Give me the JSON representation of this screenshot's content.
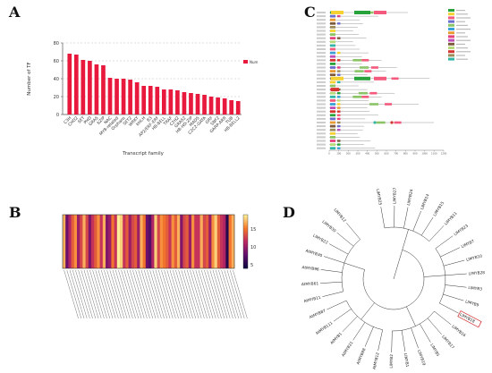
{
  "panels": {
    "a": "A",
    "b": "B",
    "c": "C",
    "d": "D"
  },
  "chart_data": [
    {
      "panel": "A",
      "type": "bar",
      "xlabel": "Transcript family",
      "ylabel": "Number of TF",
      "ylim": [
        0,
        80
      ],
      "yticks": [
        0,
        20,
        40,
        60,
        80
      ],
      "grid": true,
      "legend": {
        "label": "Num",
        "placement": "top-right"
      },
      "color": "#e8193c",
      "categories": [
        "C3H",
        "CHD2",
        "SET",
        "PHD",
        "GRAS",
        "bZIP",
        "NAC",
        "MYB-related",
        "Orphans",
        "SET2",
        "WRKY",
        "bHLH",
        "B3",
        "AP2/ERF-ERF",
        "HB-BELL",
        "TRAF",
        "C2H2",
        "GRAS2",
        "HB-HD-ZIP",
        "MADS",
        "C2C2-GATA",
        "GRF",
        "SNF2",
        "GARP-ARR",
        "TUB",
        "HB-BELL2"
      ],
      "values": [
        68,
        67,
        61,
        60,
        56,
        55,
        41,
        40,
        40,
        39,
        36,
        32,
        32,
        31,
        28,
        28,
        27,
        25,
        24,
        23,
        22,
        20,
        19,
        18,
        16,
        15
      ]
    },
    {
      "panel": "B",
      "type": "heatmap",
      "colorbar": {
        "ticks": [
          15,
          10,
          5
        ]
      },
      "columns": 60,
      "values": [
        17,
        8,
        11,
        14,
        16,
        10,
        13,
        17,
        13,
        9,
        12,
        14,
        16,
        12,
        17,
        9,
        10,
        15,
        12,
        19,
        18,
        12,
        14,
        10,
        13,
        14,
        10,
        17,
        15,
        8,
        7,
        11,
        18,
        13,
        16,
        15,
        14,
        12,
        16,
        14,
        17,
        9,
        13,
        14,
        10,
        16,
        12,
        12,
        17,
        13,
        14,
        10,
        16,
        18,
        14,
        12,
        11,
        5,
        15,
        17
      ]
    },
    {
      "panel": "C",
      "type": "table",
      "legend_colors": [
        "#28a33c",
        "#f5d231",
        "#f45a7d",
        "#6c6ecf",
        "#8ac466",
        "#3aa0d8",
        "#e99a30",
        "#e5427d",
        "#c04db7",
        "#7d5a3c",
        "#b7d97a",
        "#d5342f",
        "#9c8c5a",
        "#34b6a6"
      ],
      "axis_ticks": [
        "0",
        "100",
        "200",
        "300",
        "400",
        "500",
        "600",
        "700",
        "800",
        "900",
        "1000",
        "1100",
        "1200"
      ]
    },
    {
      "panel": "D",
      "type": "table",
      "leaves": [
        "LlMYB25",
        "LlMYB27",
        "LlMYB24",
        "LlMYB14",
        "LlMYB15",
        "LlMYB11",
        "LlMYB23",
        "LlMYB7",
        "LlMYB10",
        "LlMYB28",
        "LlMYB3",
        "LlMYB9",
        "LlMYB18",
        "LlMYB16",
        "LlMYB17",
        "LlMYB5",
        "LlMYB19",
        "LlMYB1",
        "LlMYB2",
        "AtMYB12",
        "AtMYB88",
        "AtMYB21",
        "AtMYB1",
        "AtMYB111",
        "AtMYB87",
        "AtMYB11",
        "AtMYB61",
        "AtMYB96",
        "AtMYB30",
        "LlMYB22",
        "LlMYB30",
        "LlMYB12"
      ],
      "highlighted": "LlMYB18"
    }
  ]
}
